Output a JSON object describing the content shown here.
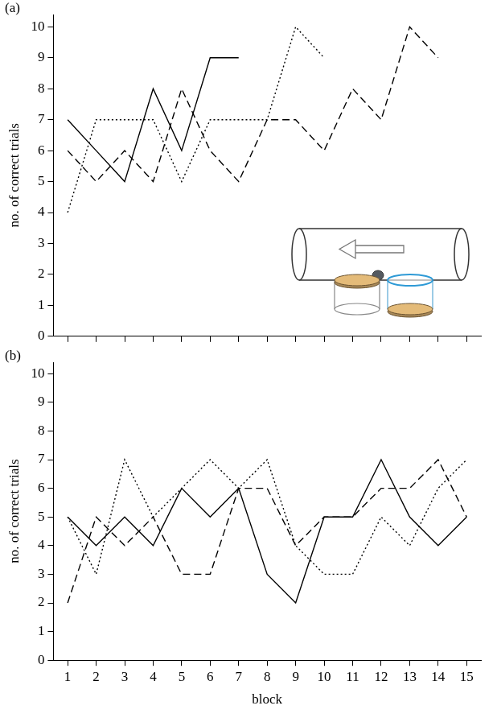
{
  "chart_data": [
    {
      "type": "line",
      "label": "(a)",
      "y_label": "no. of correct trials",
      "categories": [
        null,
        null,
        null,
        null,
        null,
        null,
        null,
        null,
        null,
        null,
        null,
        null,
        null,
        null,
        null
      ],
      "series": [
        {
          "color": "#000000",
          "line_style": "solid",
          "values": [
            7,
            6,
            5,
            8,
            6,
            9,
            9,
            null,
            null,
            null,
            null,
            null,
            null,
            null,
            null
          ]
        },
        {
          "color": "#000000",
          "line_style": "dotted",
          "values": [
            4,
            7,
            7,
            7,
            5,
            7,
            7,
            7,
            10,
            9,
            null,
            null,
            null,
            null,
            null
          ]
        },
        {
          "color": "#000000",
          "line_style": "dashed",
          "values": [
            6,
            5,
            6,
            5,
            8,
            6,
            5,
            7,
            7,
            6,
            8,
            7,
            10,
            9,
            null
          ]
        }
      ],
      "ylim": [
        0,
        10.4
      ],
      "yticks": [
        0,
        1,
        2,
        3,
        4,
        5,
        6,
        7,
        8,
        9,
        10
      ],
      "grid": false,
      "tick_labels": "y"
    },
    {
      "type": "line",
      "label": "(b)",
      "y_label": "no. of correct trials",
      "x_label": "block",
      "categories": [
        "1",
        "2",
        "3",
        "4",
        "5",
        "6",
        "7",
        "8",
        "9",
        "10",
        "11",
        "12",
        "13",
        "14",
        "15"
      ],
      "series": [
        {
          "color": "#000000",
          "line_style": "solid",
          "values": [
            5,
            4,
            5,
            4,
            6,
            5,
            6,
            3,
            2,
            5,
            5,
            7,
            5,
            4,
            5
          ]
        },
        {
          "color": "#000000",
          "line_style": "dotted",
          "values": [
            5,
            3,
            7,
            5,
            6,
            7,
            6,
            7,
            4,
            3,
            3,
            5,
            4,
            6,
            7
          ]
        },
        {
          "color": "#000000",
          "line_style": "dashed",
          "values": [
            2,
            5,
            4,
            5,
            3,
            3,
            6,
            6,
            4,
            5,
            5,
            6,
            6,
            7,
            5
          ]
        }
      ],
      "ylim": [
        0,
        10.4
      ],
      "yticks": [
        0,
        1,
        2,
        3,
        4,
        5,
        6,
        7,
        8,
        9,
        10
      ],
      "grid": false
    }
  ]
}
